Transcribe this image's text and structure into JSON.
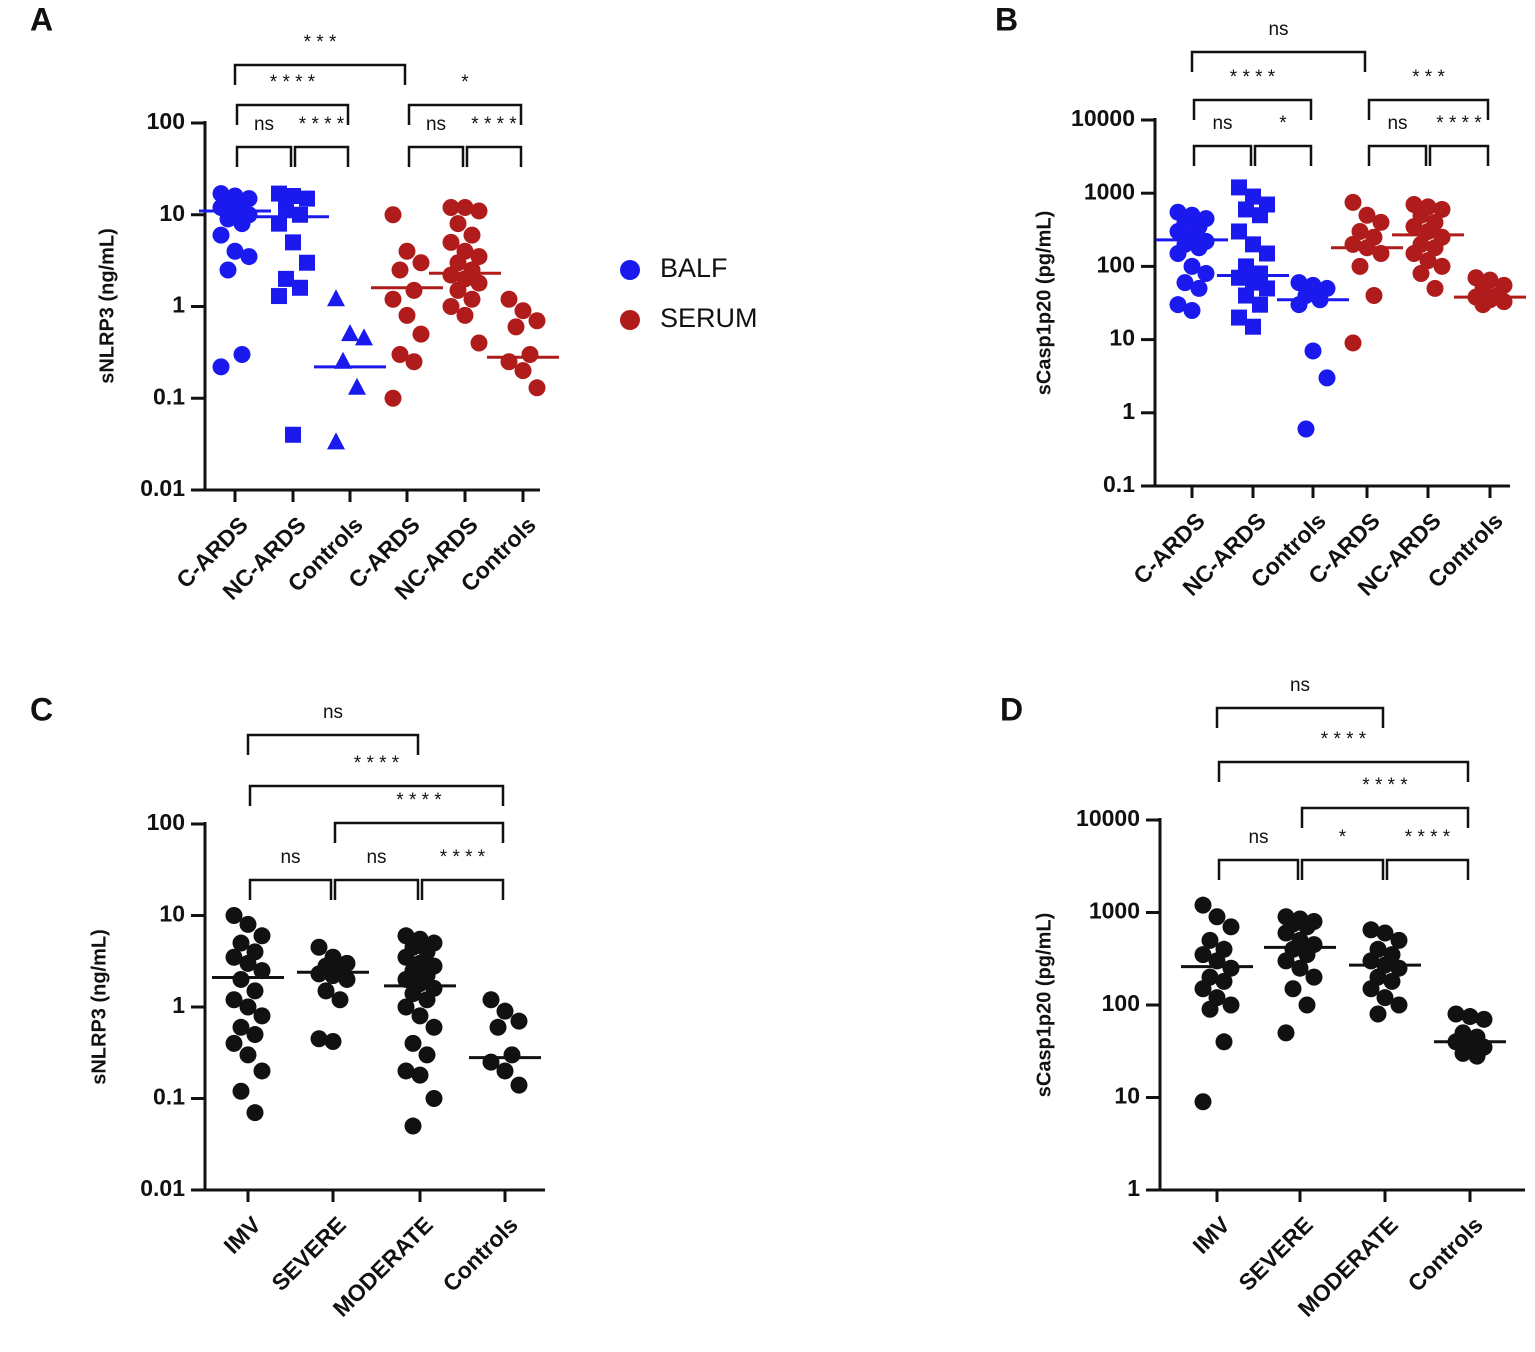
{
  "chart_data": [
    {
      "type": "scatter",
      "label": "A",
      "ylabel": "sNLRP3 (ng/mL)",
      "log": true,
      "ylim": [
        0.01,
        100
      ],
      "yticks": [
        100,
        10,
        1,
        0.1,
        0.01
      ],
      "categories": [
        "C-ARDS",
        "NC-ARDS",
        "Controls",
        "C-ARDS",
        "NC-ARDS",
        "Controls"
      ],
      "annotations": [
        "* * *",
        "* * * *",
        "*",
        "ns",
        "* * * *",
        "ns",
        "* * * *"
      ],
      "series": [
        {
          "name": "BALF",
          "color": "#1a1aee",
          "markers": [
            "circle",
            "square",
            "triangle",
            null,
            null,
            null
          ],
          "points": [
            [
              17,
              16,
              15,
              14,
              13,
              12,
              11,
              10,
              9,
              8,
              6,
              4,
              3.5,
              2.5,
              0.3,
              0.22
            ],
            [
              17,
              16,
              15,
              12,
              10,
              8,
              5,
              3,
              2,
              1.6,
              1.3,
              0.04
            ],
            [
              1.2,
              0.5,
              0.45,
              0.25,
              0.13,
              0.033
            ],
            null,
            null,
            null
          ],
          "medians": [
            11,
            9.5,
            0.22,
            null,
            null,
            null
          ]
        },
        {
          "name": "SERUM",
          "color": "#b01c1c",
          "markers": [
            null,
            null,
            null,
            "circle",
            "circle",
            "circle"
          ],
          "points": [
            null,
            null,
            null,
            [
              10,
              4,
              3,
              2.5,
              1.5,
              1.2,
              0.8,
              0.5,
              0.3,
              0.25,
              0.1
            ],
            [
              12,
              12,
              11,
              8,
              6,
              5,
              4,
              3.5,
              3,
              2.5,
              2.2,
              2,
              1.8,
              1.5,
              1.2,
              1,
              0.8,
              0.4
            ],
            [
              1.2,
              0.9,
              0.7,
              0.6,
              0.3,
              0.25,
              0.2,
              0.13
            ]
          ],
          "medians": [
            null,
            null,
            null,
            1.6,
            2.3,
            0.28
          ]
        }
      ]
    },
    {
      "type": "scatter",
      "label": "B",
      "ylabel": "sCasp1p20 (pg/mL)",
      "log": true,
      "ylim": [
        0.1,
        10000
      ],
      "yticks": [
        10000,
        1000,
        100,
        10,
        1,
        0.1
      ],
      "categories": [
        "C-ARDS",
        "NC-ARDS",
        "Controls",
        "C-ARDS",
        "NC-ARDS",
        "Controls"
      ],
      "annotations": [
        "ns",
        "* * * *",
        "* * *",
        "ns",
        "*",
        "ns",
        "* * * *"
      ],
      "series": [
        {
          "color": "#1a1aee",
          "markers": [
            "circle",
            "square",
            "circle",
            null,
            null,
            null
          ],
          "points": [
            [
              550,
              500,
              450,
              400,
              350,
              300,
              250,
              220,
              200,
              180,
              150,
              100,
              80,
              60,
              50,
              30,
              25
            ],
            [
              1200,
              900,
              700,
              600,
              500,
              300,
              200,
              150,
              100,
              80,
              70,
              60,
              50,
              40,
              30,
              20,
              15
            ],
            [
              60,
              55,
              50,
              40,
              35,
              30,
              7,
              3,
              0.6
            ],
            null,
            null,
            null
          ],
          "medians": [
            230,
            75,
            35,
            null,
            null,
            null
          ]
        },
        {
          "color": "#b01c1c",
          "markers": [
            null,
            null,
            null,
            "circle",
            "circle",
            "circle"
          ],
          "points": [
            null,
            null,
            null,
            [
              750,
              500,
              400,
              300,
              250,
              200,
              180,
              150,
              100,
              40,
              9
            ],
            [
              700,
              650,
              600,
              500,
              400,
              350,
              300,
              250,
              200,
              180,
              150,
              120,
              100,
              80,
              50
            ],
            [
              70,
              65,
              55,
              50,
              40,
              38,
              35,
              33,
              30
            ]
          ],
          "medians": [
            null,
            null,
            null,
            180,
            270,
            38
          ]
        }
      ]
    },
    {
      "type": "scatter",
      "label": "C",
      "ylabel": "sNLRP3 (ng/mL)",
      "log": true,
      "ylim": [
        0.01,
        100
      ],
      "yticks": [
        100,
        10,
        1,
        0.1,
        0.01
      ],
      "categories": [
        "IMV",
        "SEVERE",
        "MODERATE",
        "Controls"
      ],
      "annotations": [
        "ns",
        "* * * *",
        "* * * *",
        "ns",
        "ns",
        "* * * *"
      ],
      "series": [
        {
          "color": "#111111",
          "markers": [
            "circle",
            "circle",
            "circle",
            "circle"
          ],
          "points": [
            [
              10,
              8,
              6,
              5,
              4,
              3.5,
              3,
              2.5,
              2,
              1.5,
              1.2,
              1,
              0.8,
              0.6,
              0.5,
              0.4,
              0.3,
              0.2,
              0.12,
              0.07
            ],
            [
              4.5,
              3.5,
              3,
              2.8,
              2.5,
              2.3,
              2.2,
              2,
              1.5,
              1.2,
              0.45,
              0.42
            ],
            [
              6,
              5.5,
              5,
              4.5,
              4,
              3.5,
              3,
              2.8,
              2.5,
              2.2,
              2,
              1.8,
              1.6,
              1.4,
              1.2,
              1,
              0.8,
              0.6,
              0.4,
              0.3,
              0.2,
              0.18,
              0.1,
              0.05
            ],
            [
              1.2,
              0.9,
              0.7,
              0.6,
              0.3,
              0.25,
              0.2,
              0.14
            ]
          ],
          "medians": [
            2.1,
            2.4,
            1.7,
            0.28
          ]
        }
      ]
    },
    {
      "type": "scatter",
      "label": "D",
      "ylabel": "sCasp1p20 (pg/mL)",
      "log": true,
      "ylim": [
        1,
        10000
      ],
      "yticks": [
        10000,
        1000,
        100,
        10,
        1
      ],
      "categories": [
        "IMV",
        "SEVERE",
        "MODERATE",
        "Controls"
      ],
      "annotations": [
        "ns",
        "* * * *",
        "* * * *",
        "ns",
        "*",
        "* * * *"
      ],
      "series": [
        {
          "color": "#111111",
          "markers": [
            "circle",
            "circle",
            "circle",
            "circle"
          ],
          "points": [
            [
              1200,
              900,
              700,
              500,
              400,
              350,
              300,
              250,
              200,
              180,
              150,
              120,
              100,
              90,
              40,
              9
            ],
            [
              900,
              850,
              800,
              750,
              700,
              600,
              500,
              450,
              400,
              350,
              300,
              250,
              200,
              150,
              100,
              50
            ],
            [
              650,
              600,
              500,
              400,
              350,
              300,
              270,
              250,
              200,
              180,
              150,
              120,
              100,
              80
            ],
            [
              80,
              75,
              70,
              50,
              45,
              40,
              38,
              35,
              30,
              28
            ]
          ],
          "medians": [
            260,
            420,
            270,
            40
          ]
        }
      ]
    }
  ]
}
